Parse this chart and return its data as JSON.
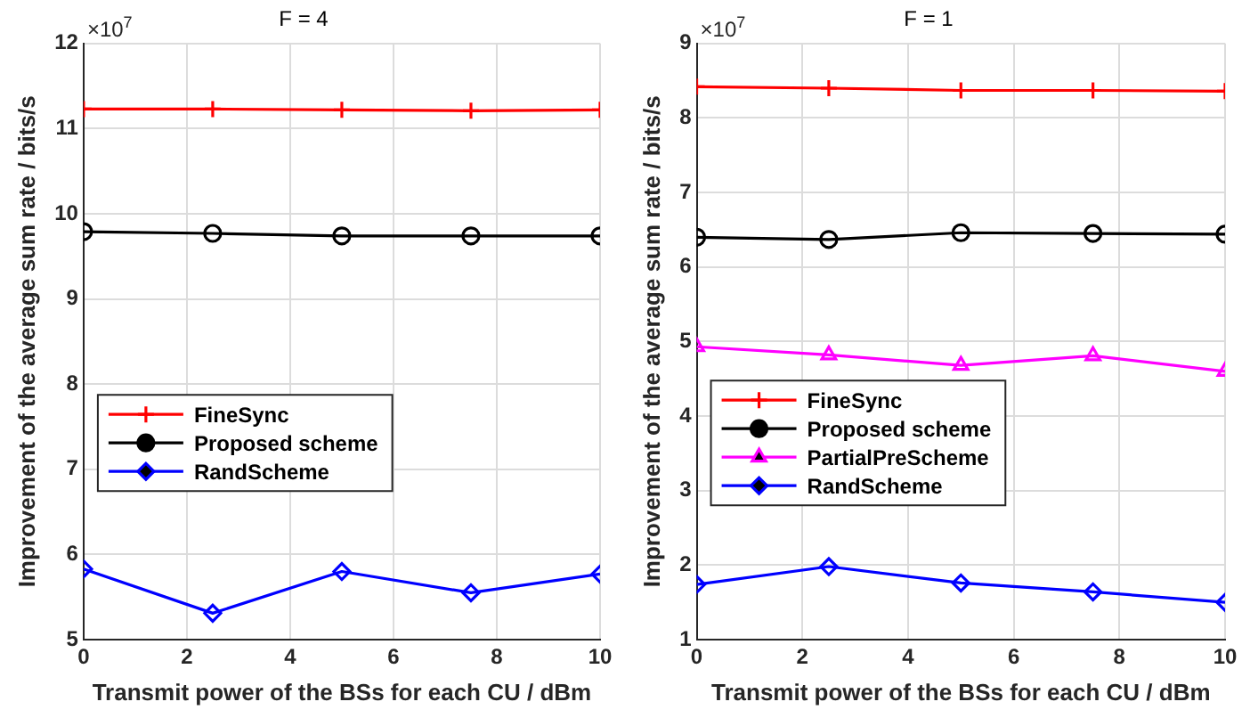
{
  "chart_data": [
    {
      "type": "line",
      "title": "F = 4",
      "xlabel": "Transmit power of the BSs for each CU / dBm",
      "ylabel": "Improvement of the average sum rate / bits/s",
      "annotations": [
        "×10$^{7}$"
      ],
      "x": [
        0,
        2.5,
        5,
        7.5,
        10
      ],
      "xlim": [
        0,
        10
      ],
      "xticks": [
        0,
        2,
        4,
        6,
        8,
        10
      ],
      "ylim": [
        5,
        12
      ],
      "yticks": [
        5,
        6,
        7,
        8,
        9,
        10,
        11,
        12
      ],
      "grid": true,
      "legend": "left",
      "series": [
        {
          "name": "FineSync",
          "color": "#ff0000",
          "marker": "cross",
          "values": [
            11.23,
            11.23,
            11.22,
            11.21,
            11.22
          ]
        },
        {
          "name": "Proposed scheme",
          "color": "#000000",
          "marker": "circle",
          "values": [
            9.79,
            9.77,
            9.74,
            9.74,
            9.74
          ]
        },
        {
          "name": "RandScheme",
          "color": "#0000ff",
          "marker": "diamond",
          "values": [
            5.83,
            5.31,
            5.8,
            5.55,
            5.77
          ]
        }
      ]
    },
    {
      "type": "line",
      "title": "F = 1",
      "xlabel": "Transmit power of the BSs for each CU / dBm",
      "ylabel": "Improvement of the average sum rate / bits/s",
      "annotations": [
        "×10$^{7}$"
      ],
      "x": [
        0,
        2.5,
        5,
        7.5,
        10
      ],
      "xlim": [
        0,
        10
      ],
      "xticks": [
        0,
        2,
        4,
        6,
        8,
        10
      ],
      "ylim": [
        1,
        9
      ],
      "yticks": [
        1,
        2,
        3,
        4,
        5,
        6,
        7,
        8,
        9
      ],
      "grid": true,
      "legend": "left",
      "series": [
        {
          "name": "FineSync",
          "color": "#ff0000",
          "marker": "cross",
          "values": [
            8.42,
            8.4,
            8.37,
            8.37,
            8.36
          ]
        },
        {
          "name": "Proposed scheme",
          "color": "#000000",
          "marker": "circle",
          "values": [
            6.4,
            6.37,
            6.46,
            6.45,
            6.44
          ]
        },
        {
          "name": "PartialPreScheme",
          "color": "#ff00ff",
          "marker": "triangle",
          "values": [
            4.93,
            4.82,
            4.68,
            4.81,
            4.6
          ]
        },
        {
          "name": "RandScheme",
          "color": "#0000ff",
          "marker": "diamond",
          "values": [
            1.74,
            1.98,
            1.76,
            1.64,
            1.5
          ]
        }
      ]
    }
  ]
}
